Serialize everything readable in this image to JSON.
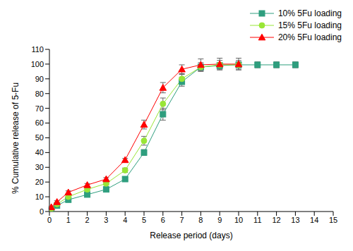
{
  "chart_data": {
    "type": "line",
    "x_label": "Release period (days)",
    "y_label": "% Cumulative release of 5-Fu",
    "x": [
      0.1,
      0.4,
      1,
      2,
      3,
      4,
      5,
      6,
      7,
      8,
      9,
      10,
      11,
      12,
      13
    ],
    "series": [
      {
        "name": "10% 5Fu loading",
        "color": "#2e9e7e",
        "marker": "square",
        "values": [
          1.5,
          4,
          8,
          11.5,
          15,
          22,
          40,
          66,
          88,
          98,
          99,
          99.5,
          99.5,
          99.5,
          99.5
        ],
        "errors": [
          0.5,
          0.5,
          1,
          0.8,
          1,
          1,
          2,
          4,
          3,
          2,
          2,
          2,
          2,
          2,
          2
        ]
      },
      {
        "name": "15% 5Fu loading",
        "color": "#99e636",
        "marker": "circle",
        "values": [
          2,
          5,
          10,
          15,
          19,
          28,
          48,
          73,
          90,
          98,
          99.5,
          99.5,
          null,
          null,
          null
        ],
        "errors": [
          0.5,
          0.5,
          1,
          1,
          1,
          1.5,
          3,
          4,
          3,
          3,
          3,
          3,
          null,
          null,
          null
        ]
      },
      {
        "name": "20% 5Fu loading",
        "color": "#ff0000",
        "marker": "triangle",
        "values": [
          3,
          6.5,
          13,
          18,
          22,
          35,
          59,
          84,
          96.5,
          99.5,
          100,
          100,
          null,
          null,
          null
        ],
        "errors": [
          0.5,
          0.8,
          1,
          1,
          1,
          1,
          3,
          3.5,
          3,
          4,
          4,
          4,
          null,
          null,
          null
        ]
      }
    ],
    "xlim": [
      0,
      15
    ],
    "xticks": [
      0,
      1,
      2,
      3,
      4,
      5,
      6,
      7,
      8,
      9,
      10,
      11,
      12,
      13,
      14,
      15
    ],
    "ylim": [
      0,
      110
    ],
    "yticks": [
      0,
      10,
      20,
      30,
      40,
      50,
      60,
      70,
      80,
      90,
      100,
      110
    ],
    "legend": "upper right",
    "grid": false
  }
}
